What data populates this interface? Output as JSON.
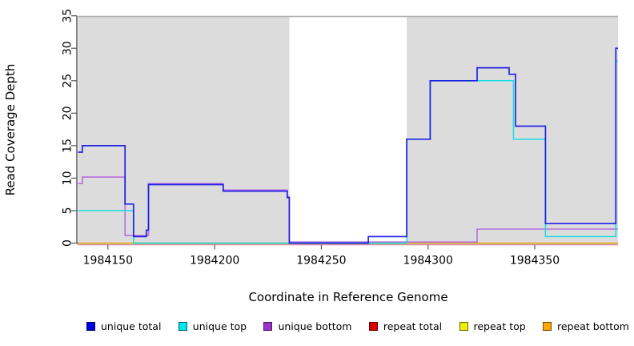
{
  "chart_data": {
    "type": "line",
    "subtype": "step-coverage",
    "title": "",
    "xlabel": "Coordinate in Reference Genome",
    "ylabel": "Read Coverage Depth",
    "xlim": [
      1984136,
      1984389
    ],
    "ylim": [
      0,
      35
    ],
    "x_ticks": [
      1984150,
      1984200,
      1984250,
      1984300,
      1984350
    ],
    "y_ticks": [
      0,
      5,
      10,
      15,
      20,
      25,
      30,
      35
    ],
    "grid": false,
    "legend_position": "bottom",
    "background_color": "#ffffff",
    "shaded_regions": [
      {
        "name": "repeat-masked-left",
        "from": 1984136,
        "to": 1984235,
        "color": "#DCDCDC",
        "top_border": "#ABABAB"
      },
      {
        "name": "repeat-masked-right",
        "from": 1984290,
        "to": 1984389,
        "color": "#DCDCDC",
        "top_border": "#ABABAB"
      }
    ],
    "series": [
      {
        "name": "repeat total",
        "color": "#E8738F",
        "dy": 2.2,
        "width": 1.2,
        "opacity": 1,
        "points": [
          [
            1984136,
            0
          ]
        ]
      },
      {
        "name": "repeat top",
        "color": "#8FD99E",
        "dy": 0.9,
        "width": 1.3,
        "opacity": 1,
        "points": [
          [
            1984136,
            0
          ]
        ]
      },
      {
        "name": "repeat bottom",
        "color": "#FFA11F",
        "dy": 0,
        "width": 1.6,
        "opacity": 1,
        "points": [
          [
            1984136,
            0
          ]
        ]
      },
      {
        "name": "unique bottom",
        "color": "#B76FDC",
        "dy": -1.3,
        "width": 1.6,
        "opacity": 1,
        "points": [
          [
            1984136,
            9
          ],
          [
            1984138,
            10
          ],
          [
            1984158,
            1
          ],
          [
            1984169,
            9
          ],
          [
            1984204,
            8
          ],
          [
            1984234,
            7
          ],
          [
            1984235,
            0
          ],
          [
            1984323,
            2
          ]
        ]
      },
      {
        "name": "unique top",
        "color": "#00DCE6",
        "dy": 0,
        "width": 1.5,
        "opacity": 0.88,
        "points": [
          [
            1984136,
            5
          ],
          [
            1984162,
            0
          ],
          [
            1984290,
            16
          ],
          [
            1984301,
            25
          ],
          [
            1984340,
            16
          ],
          [
            1984355,
            1
          ],
          [
            1984388,
            28
          ]
        ]
      },
      {
        "name": "unique total",
        "color": "#1414E6",
        "dy": 0,
        "width": 1.7,
        "opacity": 0.92,
        "points": [
          [
            1984136,
            14
          ],
          [
            1984138,
            15
          ],
          [
            1984158,
            6
          ],
          [
            1984162,
            1
          ],
          [
            1984168,
            2
          ],
          [
            1984169,
            9
          ],
          [
            1984204,
            8
          ],
          [
            1984234,
            7
          ],
          [
            1984235,
            0
          ],
          [
            1984272,
            1
          ],
          [
            1984290,
            16
          ],
          [
            1984301,
            25
          ],
          [
            1984323,
            27
          ],
          [
            1984338,
            26
          ],
          [
            1984341,
            18
          ],
          [
            1984355,
            3
          ],
          [
            1984388,
            30
          ]
        ]
      }
    ]
  },
  "legend": {
    "items": [
      {
        "label": "unique total",
        "color": "#0000E6"
      },
      {
        "label": "unique top",
        "color": "#00E6EE"
      },
      {
        "label": "unique bottom",
        "color": "#9933CC"
      },
      {
        "label": "repeat total",
        "color": "#DD0000"
      },
      {
        "label": "repeat top",
        "color": "#EEEE00"
      },
      {
        "label": "repeat bottom",
        "color": "#FFA500"
      }
    ]
  },
  "axis_style": {
    "line_color": "#333333",
    "tick_color": "#555555",
    "tick_label_size": 14,
    "tick_label_color": "#000000"
  }
}
